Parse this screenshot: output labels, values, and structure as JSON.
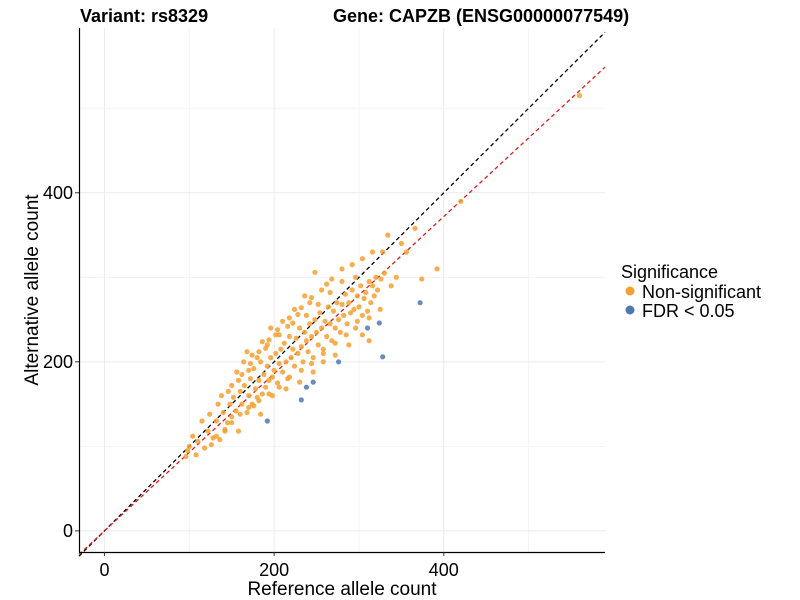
{
  "chart_data": {
    "type": "scatter",
    "title_left": "Variant: rs8329",
    "title_right": "Gene: CAPZB (ENSG00000077549)",
    "xlabel": "Reference allele count",
    "ylabel": "Alternative allele count",
    "xlim": [
      -30,
      590
    ],
    "ylim": [
      -25,
      595
    ],
    "x_ticks": [
      0,
      200,
      400
    ],
    "y_ticks": [
      0,
      200,
      400
    ],
    "grid": true,
    "legend": {
      "title": "Significance",
      "position": "right",
      "entries": [
        {
          "label": "Non-significant",
          "color": "#F5A030"
        },
        {
          "label": "FDR < 0.05",
          "color": "#4E79B0"
        }
      ]
    },
    "reference_lines": [
      {
        "style": "dashed",
        "color": "#000000",
        "intercept": 0,
        "slope": 1.0
      },
      {
        "style": "dashed",
        "color": "#e41a1c",
        "intercept": 0,
        "slope": 0.93
      }
    ],
    "series": [
      {
        "name": "Non-significant",
        "color": "#F5A030",
        "points": [
          [
            96,
            88
          ],
          [
            98,
            95
          ],
          [
            100,
            100
          ],
          [
            108,
            90
          ],
          [
            115,
            130
          ],
          [
            122,
            118
          ],
          [
            128,
            110
          ],
          [
            132,
            130
          ],
          [
            136,
            108
          ],
          [
            140,
            140
          ],
          [
            142,
            120
          ],
          [
            145,
            128
          ],
          [
            148,
            150
          ],
          [
            150,
            135
          ],
          [
            152,
            158
          ],
          [
            155,
            142
          ],
          [
            158,
            118
          ],
          [
            160,
            165
          ],
          [
            162,
            150
          ],
          [
            165,
            172
          ],
          [
            168,
            140
          ],
          [
            170,
            160
          ],
          [
            172,
            180
          ],
          [
            174,
            150
          ],
          [
            176,
            192
          ],
          [
            178,
            168
          ],
          [
            180,
            158
          ],
          [
            182,
            178
          ],
          [
            184,
            200
          ],
          [
            186,
            162
          ],
          [
            188,
            185
          ],
          [
            190,
            170
          ],
          [
            192,
            195
          ],
          [
            194,
            178
          ],
          [
            196,
            205
          ],
          [
            198,
            182
          ],
          [
            200,
            190
          ],
          [
            202,
            210
          ],
          [
            204,
            175
          ],
          [
            206,
            198
          ],
          [
            208,
            215
          ],
          [
            210,
            188
          ],
          [
            212,
            222
          ],
          [
            214,
            200
          ],
          [
            216,
            180
          ],
          [
            218,
            230
          ],
          [
            220,
            205
          ],
          [
            222,
            215
          ],
          [
            224,
            195
          ],
          [
            226,
            228
          ],
          [
            228,
            210
          ],
          [
            230,
            240
          ],
          [
            232,
            218
          ],
          [
            234,
            200
          ],
          [
            236,
            235
          ],
          [
            238,
            225
          ],
          [
            240,
            212
          ],
          [
            242,
            245
          ],
          [
            244,
            230
          ],
          [
            246,
            205
          ],
          [
            248,
            250
          ],
          [
            250,
            235
          ],
          [
            252,
            220
          ],
          [
            254,
            258
          ],
          [
            256,
            240
          ],
          [
            258,
            215
          ],
          [
            260,
            248
          ],
          [
            262,
            230
          ],
          [
            264,
            265
          ],
          [
            266,
            245
          ],
          [
            268,
            225
          ],
          [
            270,
            260
          ],
          [
            272,
            240
          ],
          [
            274,
            270
          ],
          [
            276,
            250
          ],
          [
            278,
            235
          ],
          [
            280,
            268
          ],
          [
            282,
            255
          ],
          [
            284,
            280
          ],
          [
            286,
            245
          ],
          [
            288,
            270
          ],
          [
            290,
            258
          ],
          [
            292,
            285
          ],
          [
            294,
            262
          ],
          [
            296,
            240
          ],
          [
            298,
            278
          ],
          [
            300,
            265
          ],
          [
            302,
            290
          ],
          [
            304,
            255
          ],
          [
            306,
            275
          ],
          [
            308,
            282
          ],
          [
            310,
            260
          ],
          [
            312,
            295
          ],
          [
            314,
            270
          ],
          [
            316,
            290
          ],
          [
            318,
            278
          ],
          [
            320,
            300
          ],
          [
            322,
            285
          ],
          [
            325,
            262
          ],
          [
            328,
            330
          ],
          [
            330,
            305
          ],
          [
            334,
            350
          ],
          [
            338,
            290
          ],
          [
            344,
            300
          ],
          [
            350,
            340
          ],
          [
            356,
            330
          ],
          [
            366,
            358
          ],
          [
            374,
            298
          ],
          [
            392,
            310
          ],
          [
            420,
            390
          ],
          [
            168,
            212
          ],
          [
            176,
            148
          ],
          [
            184,
            138
          ],
          [
            190,
            216
          ],
          [
            198,
            160
          ],
          [
            206,
            232
          ],
          [
            214,
            168
          ],
          [
            222,
            246
          ],
          [
            230,
            176
          ],
          [
            238,
            255
          ],
          [
            246,
            188
          ],
          [
            252,
            268
          ],
          [
            258,
            200
          ],
          [
            266,
            282
          ],
          [
            272,
            208
          ],
          [
            280,
            295
          ],
          [
            288,
            220
          ],
          [
            296,
            300
          ],
          [
            304,
            232
          ],
          [
            312,
            225
          ],
          [
            156,
            188
          ],
          [
            164,
            200
          ],
          [
            174,
            208
          ],
          [
            186,
            224
          ],
          [
            196,
            240
          ],
          [
            210,
            248
          ],
          [
            224,
            262
          ],
          [
            236,
            278
          ],
          [
            248,
            306
          ],
          [
            262,
            292
          ],
          [
            134,
            150
          ],
          [
            146,
            165
          ],
          [
            158,
            178
          ],
          [
            170,
            190
          ],
          [
            180,
            205
          ],
          [
            192,
            220
          ],
          [
            202,
            232
          ],
          [
            216,
            242
          ],
          [
            228,
            256
          ],
          [
            242,
            270
          ],
          [
            124,
            138
          ],
          [
            138,
            160
          ],
          [
            150,
            172
          ],
          [
            162,
            185
          ],
          [
            172,
            198
          ],
          [
            182,
            212
          ],
          [
            194,
            226
          ],
          [
            204,
            238
          ],
          [
            218,
            252
          ],
          [
            232,
            264
          ],
          [
            244,
            276
          ],
          [
            256,
            285
          ],
          [
            268,
            298
          ],
          [
            280,
            310
          ],
          [
            292,
            315
          ],
          [
            304,
            322
          ],
          [
            316,
            330
          ],
          [
            326,
            298
          ],
          [
            312,
            252
          ],
          [
            298,
            248
          ],
          [
            285,
            232
          ],
          [
            272,
            222
          ],
          [
            258,
            210
          ],
          [
            244,
            198
          ],
          [
            232,
            190
          ],
          [
            218,
            182
          ],
          [
            206,
            170
          ],
          [
            194,
            162
          ],
          [
            182,
            154
          ],
          [
            170,
            146
          ],
          [
            160,
            138
          ],
          [
            150,
            128
          ],
          [
            142,
            118
          ],
          [
            132,
            112
          ],
          [
            126,
            102
          ],
          [
            118,
            98
          ],
          [
            110,
            106
          ],
          [
            104,
            112
          ],
          [
            560,
            515
          ]
        ]
      },
      {
        "name": "FDR < 0.05",
        "color": "#4E79B0",
        "points": [
          [
            192,
            130
          ],
          [
            232,
            155
          ],
          [
            238,
            170
          ],
          [
            246,
            176
          ],
          [
            276,
            200
          ],
          [
            310,
            240
          ],
          [
            324,
            246
          ],
          [
            328,
            206
          ],
          [
            372,
            270
          ]
        ]
      }
    ]
  }
}
